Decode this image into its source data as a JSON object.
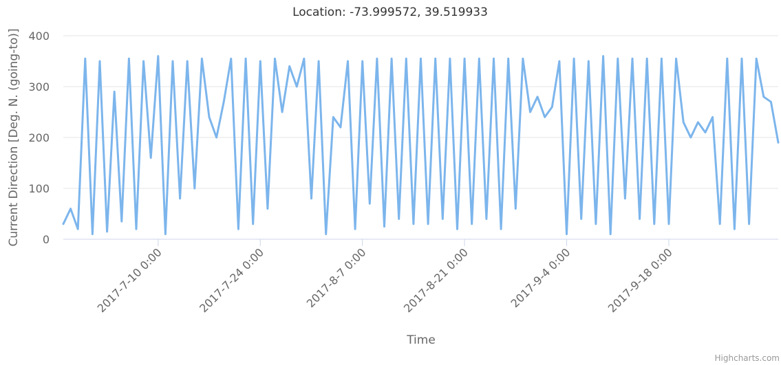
{
  "chart_data": {
    "type": "line",
    "title": "Location: -73.999572, 39.519933",
    "xlabel": "Time",
    "ylabel": "Current Direction [Deg. N. (going-to)]",
    "ylim": [
      0,
      400
    ],
    "yticks": [
      "0",
      "100",
      "200",
      "300",
      "400"
    ],
    "xlim": [
      "2017-06-27",
      "2017-10-03"
    ],
    "xticks": [
      "2017-7-10 0:00",
      "2017-7-24 0:00",
      "2017-8-7 0:00",
      "2017-8-21 0:00",
      "2017-9-4 0:00",
      "2017-9-18 0:00"
    ],
    "xtick_dates": [
      "2017-07-10",
      "2017-07-24",
      "2017-08-07",
      "2017-08-21",
      "2017-09-04",
      "2017-09-18"
    ],
    "grid": true,
    "series": [
      {
        "name": "",
        "color": "#7cb5ec",
        "x": [
          "2017-06-27",
          "2017-06-28",
          "2017-06-29",
          "2017-06-30",
          "2017-07-01",
          "2017-07-02",
          "2017-07-03",
          "2017-07-04",
          "2017-07-05",
          "2017-07-06",
          "2017-07-07",
          "2017-07-08",
          "2017-07-09",
          "2017-07-10",
          "2017-07-11",
          "2017-07-12",
          "2017-07-13",
          "2017-07-14",
          "2017-07-15",
          "2017-07-16",
          "2017-07-17",
          "2017-07-18",
          "2017-07-19",
          "2017-07-20",
          "2017-07-21",
          "2017-07-22",
          "2017-07-23",
          "2017-07-24",
          "2017-07-25",
          "2017-07-26",
          "2017-07-27",
          "2017-07-28",
          "2017-07-29",
          "2017-07-30",
          "2017-07-31",
          "2017-08-01",
          "2017-08-02",
          "2017-08-03",
          "2017-08-04",
          "2017-08-05",
          "2017-08-06",
          "2017-08-07",
          "2017-08-08",
          "2017-08-09",
          "2017-08-10",
          "2017-08-11",
          "2017-08-12",
          "2017-08-13",
          "2017-08-14",
          "2017-08-15",
          "2017-08-16",
          "2017-08-17",
          "2017-08-18",
          "2017-08-19",
          "2017-08-20",
          "2017-08-21",
          "2017-08-22",
          "2017-08-23",
          "2017-08-24",
          "2017-08-25",
          "2017-08-26",
          "2017-08-27",
          "2017-08-28",
          "2017-08-29",
          "2017-08-30",
          "2017-08-31",
          "2017-09-01",
          "2017-09-02",
          "2017-09-03",
          "2017-09-04",
          "2017-09-05",
          "2017-09-06",
          "2017-09-07",
          "2017-09-08",
          "2017-09-09",
          "2017-09-10",
          "2017-09-11",
          "2017-09-12",
          "2017-09-13",
          "2017-09-14",
          "2017-09-15",
          "2017-09-16",
          "2017-09-17",
          "2017-09-18",
          "2017-09-19",
          "2017-09-20",
          "2017-09-21",
          "2017-09-22",
          "2017-09-23",
          "2017-09-24",
          "2017-09-25",
          "2017-09-26",
          "2017-09-27",
          "2017-09-28",
          "2017-09-29",
          "2017-09-30",
          "2017-10-01",
          "2017-10-02",
          "2017-10-03"
        ],
        "values": [
          30,
          60,
          20,
          355,
          10,
          350,
          15,
          290,
          35,
          355,
          20,
          350,
          160,
          360,
          10,
          350,
          80,
          350,
          100,
          355,
          240,
          200,
          270,
          355,
          20,
          355,
          30,
          350,
          60,
          355,
          250,
          340,
          300,
          355,
          80,
          350,
          10,
          240,
          220,
          350,
          20,
          350,
          70,
          355,
          25,
          355,
          40,
          355,
          30,
          355,
          30,
          355,
          40,
          355,
          20,
          355,
          30,
          355,
          40,
          355,
          20,
          355,
          60,
          355,
          250,
          280,
          240,
          260,
          350,
          10,
          355,
          40,
          350,
          30,
          360,
          10,
          355,
          80,
          355,
          40,
          355,
          30,
          355,
          30,
          355,
          230,
          200,
          230,
          210,
          240,
          30,
          355,
          20,
          355,
          30,
          355,
          280,
          270,
          190
        ]
      }
    ]
  },
  "credits": "Highcharts.com"
}
